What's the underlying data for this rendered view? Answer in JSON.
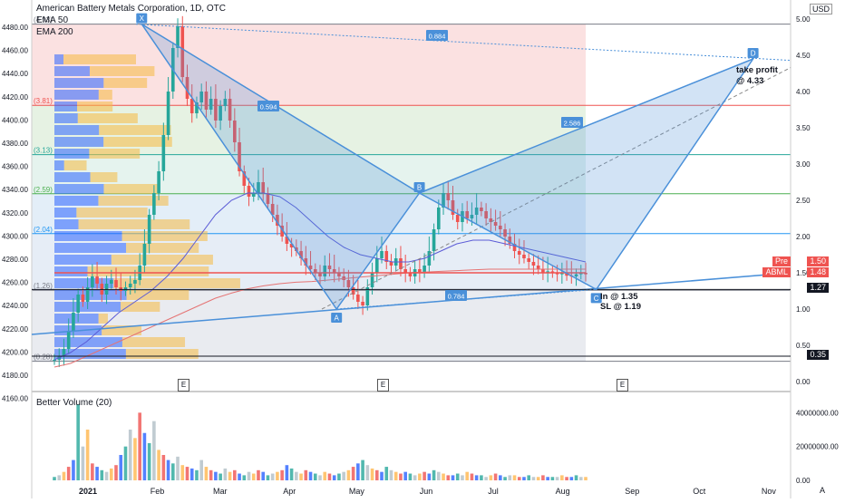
{
  "header": {
    "title": "American Battery Metals Corporation, 1D, OTC",
    "ema50_label": "EMA 50",
    "ema200_label": "EMA 200",
    "volume_label": "Better Volume (20)",
    "currency": "USD",
    "auto_label": "A"
  },
  "colors": {
    "up": "#26a69a",
    "down": "#ef5350",
    "pattern": "#4a90d9",
    "ema50": "#5b5bd6",
    "ema200": "#e57373",
    "vpvr_up": "#2962ff",
    "vpvr_down": "#f5b942"
  },
  "chart_data": [
    {
      "type": "line",
      "panel": "price",
      "y_left_ticks": [
        "4480.00",
        "4460.00",
        "4440.00",
        "4420.00",
        "4400.00",
        "4380.00",
        "4360.00",
        "4340.00",
        "4320.00",
        "4300.00",
        "4280.00",
        "4260.00",
        "4240.00",
        "4220.00",
        "4200.00",
        "4180.00",
        "4160.00"
      ],
      "y_right_ticks": [
        "5.00",
        "4.50",
        "4.00",
        "3.50",
        "3.00",
        "2.50",
        "2.00",
        "1.50",
        "1.00",
        "0.50",
        "0.00"
      ],
      "ylim": [
        0,
        5.0
      ],
      "x_ticks": [
        "2021",
        "Feb",
        "Mar",
        "Apr",
        "May",
        "Jun",
        "Jul",
        "Aug",
        "Sep",
        "Oct",
        "Nov"
      ],
      "fib_levels": [
        {
          "label": "(4.93)",
          "price": 4.93,
          "color": "#787b86"
        },
        {
          "label": "(3.81)",
          "price": 3.81,
          "color": "#ef5350"
        },
        {
          "label": "(3.13)",
          "price": 3.13,
          "color": "#26a69a"
        },
        {
          "label": "(2.59)",
          "price": 2.59,
          "color": "#4caf50"
        },
        {
          "label": "(2.04)",
          "price": 2.04,
          "color": "#2196f3"
        },
        {
          "label": "(1.26)",
          "price": 1.26,
          "color": "#787b86"
        },
        {
          "label": "(0.28)",
          "price": 0.28,
          "color": "#787b86"
        }
      ],
      "pattern_points": [
        {
          "label": "X",
          "date": "2021-01-25",
          "price": 4.93
        },
        {
          "label": "A",
          "date": "2021-04-22",
          "price": 1.0
        },
        {
          "label": "B",
          "date": "2021-05-29",
          "price": 2.6
        },
        {
          "label": "C",
          "date": "2021-08-16",
          "price": 1.27
        },
        {
          "label": "D",
          "date": "2021-10-25",
          "price": 4.45
        }
      ],
      "ratios": [
        "0.884",
        "0.594",
        "2.586",
        "0.784"
      ],
      "annotations": [
        "take profit",
        "@ 4.33",
        "In @ 1.35",
        "SL @ 1.19"
      ],
      "price_labels": [
        {
          "label": "Pre",
          "value": "1.50",
          "color": "#ef5350"
        },
        {
          "label": "ABML",
          "value": "1.48",
          "color": "#ef5350"
        },
        {
          "label": "",
          "value": "1.27",
          "color": "#131722"
        },
        {
          "label": "",
          "value": "0.35",
          "color": "#131722"
        }
      ],
      "earnings_markers": [
        "E",
        "E",
        "E"
      ],
      "closes": [
        0.3,
        0.35,
        0.45,
        0.7,
        0.95,
        1.2,
        1.1,
        1.3,
        1.45,
        1.35,
        1.2,
        1.35,
        1.4,
        1.3,
        1.25,
        1.3,
        1.35,
        1.4,
        1.6,
        1.9,
        2.3,
        2.6,
        2.9,
        3.4,
        4.0,
        4.6,
        4.9,
        4.2,
        3.9,
        3.7,
        3.85,
        4.0,
        3.75,
        3.9,
        3.6,
        3.8,
        3.9,
        3.6,
        3.3,
        2.9,
        2.7,
        2.55,
        2.6,
        2.75,
        2.6,
        2.45,
        2.3,
        2.15,
        2.0,
        1.9,
        1.85,
        1.8,
        1.7,
        1.6,
        1.55,
        1.5,
        1.45,
        1.6,
        1.55,
        1.5,
        1.45,
        1.4,
        1.3,
        1.2,
        1.1,
        1.05,
        1.3,
        1.5,
        1.7,
        1.8,
        1.65,
        1.6,
        1.7,
        1.55,
        1.5,
        1.45,
        1.55,
        1.5,
        1.6,
        1.8,
        2.1,
        2.4,
        2.6,
        2.5,
        2.3,
        2.2,
        2.35,
        2.25,
        2.3,
        2.4,
        2.35,
        2.25,
        2.2,
        2.15,
        2.1,
        2.0,
        1.9,
        1.8,
        1.75,
        1.7,
        1.65,
        1.6,
        1.55,
        1.5,
        1.52,
        1.5,
        1.48,
        1.5,
        1.46,
        1.45,
        1.48,
        1.5,
        1.48
      ],
      "ema50": [
        0.3,
        0.4,
        0.55,
        0.75,
        0.95,
        1.1,
        1.25,
        1.45,
        1.7,
        2.0,
        2.3,
        2.5,
        2.6,
        2.6,
        2.55,
        2.4,
        2.2,
        2.0,
        1.85,
        1.75,
        1.7,
        1.65,
        1.65,
        1.7,
        1.8,
        1.9,
        1.95,
        1.95,
        1.9,
        1.85,
        1.8,
        1.75,
        1.7,
        1.65
      ],
      "ema200": [
        0.2,
        0.25,
        0.35,
        0.45,
        0.55,
        0.65,
        0.75,
        0.85,
        0.95,
        1.05,
        1.15,
        1.22,
        1.28,
        1.32,
        1.35,
        1.37,
        1.38,
        1.4,
        1.42,
        1.44,
        1.46,
        1.48,
        1.5,
        1.51,
        1.52,
        1.53,
        1.54,
        1.55,
        1.55,
        1.55,
        1.55,
        1.55,
        1.55,
        1.55
      ]
    },
    {
      "type": "bar",
      "panel": "volume",
      "y_ticks": [
        "40000000.00",
        "20000000.00",
        "0.00"
      ],
      "ylim": [
        0,
        45000000
      ],
      "values": [
        2,
        3,
        5,
        8,
        12,
        45,
        20,
        30,
        10,
        8,
        6,
        5,
        7,
        9,
        15,
        20,
        30,
        25,
        40,
        28,
        22,
        35,
        18,
        15,
        12,
        10,
        14,
        9,
        8,
        7,
        6,
        12,
        8,
        6,
        5,
        4,
        7,
        5,
        6,
        4,
        3,
        5,
        4,
        6,
        5,
        3,
        4,
        5,
        6,
        9,
        7,
        5,
        4,
        6,
        5,
        4,
        3,
        5,
        4,
        3,
        4,
        5,
        6,
        8,
        10,
        12,
        9,
        7,
        6,
        5,
        8,
        6,
        5,
        4,
        5,
        4,
        3,
        4,
        5,
        4,
        6,
        5,
        4,
        3,
        3,
        4,
        3,
        5,
        4,
        3,
        3,
        2,
        3,
        4,
        3,
        2,
        3,
        3,
        2,
        2,
        3,
        2,
        2,
        3,
        2,
        2,
        2,
        3,
        2,
        2,
        3,
        2,
        2
      ]
    }
  ]
}
